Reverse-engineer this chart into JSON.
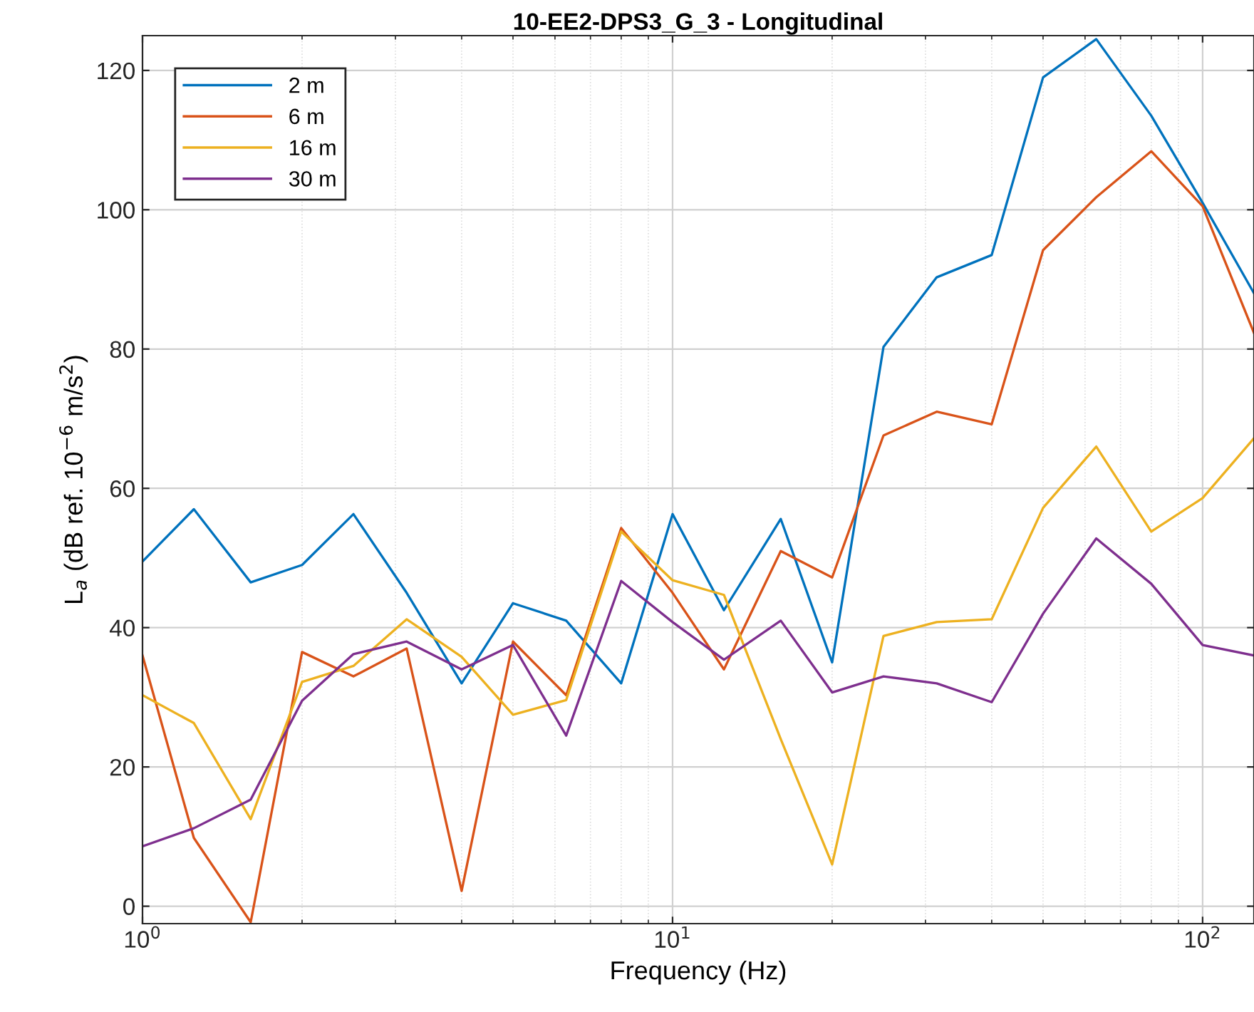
{
  "chart_data": {
    "type": "line",
    "title": "10-EE2-DPS3_G_3 - Longitudinal",
    "xlabel": "Frequency (Hz)",
    "ylabel": "L$_{a}$ (dB ref. 10$^{−6}$ m/s$^{2}$)",
    "x": [
      1,
      1.25,
      1.6,
      2,
      2.5,
      3.15,
      4,
      5,
      6.3,
      8,
      10,
      12.5,
      16,
      20,
      25,
      31.5,
      40,
      50,
      63,
      80,
      100,
      125
    ],
    "series": [
      {
        "name": "2 m",
        "color": "#0072bd",
        "values": [
          49.5,
          57,
          46.5,
          49,
          56.3,
          45,
          32,
          43.5,
          41,
          32,
          56.3,
          42.5,
          55.6,
          35,
          80.3,
          90.3,
          93.5,
          119,
          124.5,
          113.5,
          101,
          88
        ]
      },
      {
        "name": "6 m",
        "color": "#d95319",
        "values": [
          36,
          9.8,
          -2.3,
          36.5,
          33,
          37,
          2.2,
          38,
          30.3,
          54.3,
          45,
          34,
          51,
          47.2,
          67.6,
          71,
          69.2,
          94.2,
          101.8,
          108.4,
          100.5,
          82.3
        ]
      },
      {
        "name": "16 m",
        "color": "#edb120",
        "values": [
          30.3,
          26.3,
          12.5,
          32.2,
          34.5,
          41.2,
          35.8,
          27.5,
          29.6,
          53.8,
          46.8,
          44.7,
          24,
          6,
          38.8,
          40.8,
          41.2,
          57.2,
          66,
          53.8,
          58.6,
          67.2
        ]
      },
      {
        "name": "30 m",
        "color": "#7e2f8e",
        "values": [
          8.6,
          11.2,
          15.3,
          29.5,
          36.2,
          38,
          34,
          37.5,
          24.5,
          46.7,
          40.8,
          35.4,
          41,
          30.7,
          33,
          32,
          29.3,
          42,
          52.8,
          46.3,
          37.5,
          36
        ]
      }
    ],
    "log": "x",
    "xlim": [
      1,
      125
    ],
    "ylim": [
      -2.5,
      125
    ],
    "xticks": [
      {
        "value": 1,
        "label": "10$^{0}$"
      },
      {
        "value": 10,
        "label": "10$^{1}$"
      },
      {
        "value": 100,
        "label": "10$^{2}$"
      }
    ],
    "yticks": [
      0,
      20,
      40,
      60,
      80,
      100,
      120
    ],
    "grid": true,
    "legend": "top left",
    "marker": "none",
    "line_style": "solid"
  }
}
